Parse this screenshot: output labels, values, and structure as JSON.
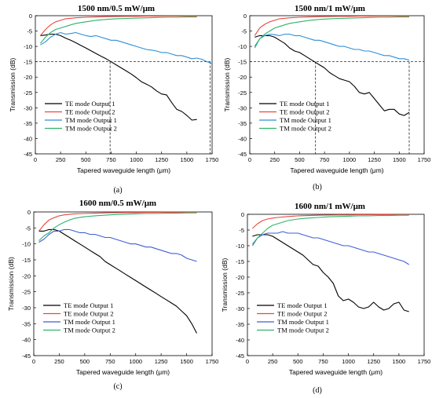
{
  "chart_data": [
    {
      "type": "line",
      "title": "1500 nm/0.5 mW/μm",
      "caption": "(a)",
      "xlabel": "Tapered waveguide length (μm)",
      "ylabel": "Transmission (dB)",
      "xlim": [
        0,
        1750
      ],
      "ylim": [
        -45,
        0
      ],
      "xticks": [
        0,
        250,
        500,
        750,
        1000,
        1250,
        1500,
        1750
      ],
      "yticks": [
        0,
        -5,
        -10,
        -15,
        -20,
        -25,
        -30,
        -35,
        -40,
        -45
      ],
      "legend_position": "lower-left",
      "reference_lines": {
        "horizontal_y": -15,
        "vertical_x": [
          740,
          1730
        ]
      },
      "series": [
        {
          "name": "TE mode Output 1",
          "color": "#000000",
          "x": [
            50,
            100,
            150,
            200,
            250,
            300,
            350,
            400,
            450,
            500,
            550,
            600,
            650,
            700,
            750,
            800,
            850,
            900,
            950,
            1000,
            1050,
            1100,
            1150,
            1200,
            1250,
            1300,
            1350,
            1400,
            1450,
            1500,
            1550,
            1600
          ],
          "y": [
            -6.5,
            -6.3,
            -6.0,
            -6.0,
            -6.5,
            -7.3,
            -8.0,
            -8.8,
            -9.7,
            -10.5,
            -11.4,
            -12.3,
            -13.2,
            -14.0,
            -15.0,
            -16.0,
            -17.0,
            -18.0,
            -19.0,
            -20.2,
            -21.5,
            -22.3,
            -23.2,
            -24.5,
            -25.5,
            -25.8,
            -28.3,
            -30.5,
            -31.2,
            -32.5,
            -34.0,
            -33.8
          ]
        },
        {
          "name": "TE mode Output 2",
          "color": "#e8483f",
          "x": [
            50,
            100,
            150,
            200,
            250,
            300,
            400,
            500,
            600,
            700,
            800,
            900,
            1000,
            1100,
            1200,
            1300,
            1400,
            1500,
            1600
          ],
          "y": [
            -6.5,
            -4.5,
            -3.0,
            -2.0,
            -1.5,
            -1.0,
            -0.7,
            -0.5,
            -0.4,
            -0.3,
            -0.25,
            -0.2,
            -0.2,
            -0.15,
            -0.15,
            -0.1,
            -0.1,
            -0.1,
            -0.1
          ]
        },
        {
          "name": "TM mode Output 1",
          "color": "#2e8fd8",
          "x": [
            50,
            100,
            150,
            200,
            250,
            300,
            350,
            400,
            450,
            500,
            550,
            600,
            650,
            700,
            750,
            800,
            850,
            900,
            950,
            1000,
            1050,
            1100,
            1150,
            1200,
            1250,
            1300,
            1350,
            1400,
            1450,
            1500,
            1550,
            1600,
            1650,
            1700,
            1750
          ],
          "y": [
            -9.5,
            -8.5,
            -7.0,
            -6.0,
            -5.5,
            -6.0,
            -5.8,
            -5.5,
            -6.0,
            -6.5,
            -6.8,
            -6.5,
            -7.0,
            -7.5,
            -8.0,
            -8.0,
            -8.5,
            -9.0,
            -9.5,
            -10.0,
            -10.5,
            -11.0,
            -11.2,
            -11.5,
            -12.0,
            -12.0,
            -12.5,
            -13.0,
            -13.0,
            -13.5,
            -14.0,
            -13.8,
            -14.2,
            -15.0,
            -15.5
          ]
        },
        {
          "name": "TM mode Output 2",
          "color": "#2fb36a",
          "x": [
            50,
            100,
            150,
            200,
            250,
            300,
            350,
            400,
            500,
            600,
            700,
            800,
            900,
            1000,
            1100,
            1200,
            1300,
            1400,
            1500,
            1600
          ],
          "y": [
            -9.0,
            -7.0,
            -5.5,
            -4.5,
            -4.0,
            -3.5,
            -3.0,
            -2.5,
            -2.0,
            -1.5,
            -1.2,
            -1.0,
            -0.9,
            -0.8,
            -0.7,
            -0.6,
            -0.5,
            -0.5,
            -0.4,
            -0.4
          ]
        }
      ]
    },
    {
      "type": "line",
      "title": "1500 nm/1 mW/μm",
      "caption": "(b)",
      "xlabel": "Tapered waveguide length (μm)",
      "ylabel": "Transmission (dB)",
      "xlim": [
        0,
        1750
      ],
      "ylim": [
        -45,
        0
      ],
      "xticks": [
        0,
        250,
        500,
        750,
        1000,
        1250,
        1500,
        1750
      ],
      "yticks": [
        0,
        -5,
        -10,
        -15,
        -20,
        -25,
        -30,
        -35,
        -40,
        -45
      ],
      "legend_position": "lower-left",
      "reference_lines": {
        "horizontal_y": -15,
        "vertical_x": [
          660,
          1600
        ]
      },
      "series": [
        {
          "name": "TE mode Output 1",
          "color": "#000000",
          "x": [
            50,
            100,
            150,
            200,
            250,
            300,
            350,
            400,
            450,
            500,
            550,
            600,
            650,
            700,
            750,
            800,
            850,
            900,
            950,
            1000,
            1050,
            1100,
            1150,
            1200,
            1250,
            1300,
            1350,
            1400,
            1450,
            1500,
            1550,
            1600
          ],
          "y": [
            -7.0,
            -6.5,
            -6.5,
            -6.5,
            -7.0,
            -8.0,
            -9.0,
            -10.5,
            -11.5,
            -12.0,
            -13.0,
            -14.0,
            -15.0,
            -16.0,
            -17.0,
            -18.5,
            -19.5,
            -20.5,
            -21.0,
            -21.5,
            -23.0,
            -25.0,
            -25.5,
            -25.0,
            -27.0,
            -29.0,
            -31.0,
            -30.5,
            -30.5,
            -32.0,
            -32.5,
            -31.5
          ]
        },
        {
          "name": "TE mode Output 2",
          "color": "#e8483f",
          "x": [
            50,
            100,
            150,
            200,
            250,
            300,
            400,
            500,
            600,
            700,
            800,
            900,
            1000,
            1100,
            1200,
            1300,
            1400,
            1500,
            1600
          ],
          "y": [
            -6.5,
            -4.0,
            -2.8,
            -2.0,
            -1.5,
            -1.0,
            -0.7,
            -0.5,
            -0.4,
            -0.3,
            -0.25,
            -0.2,
            -0.2,
            -0.15,
            -0.15,
            -0.1,
            -0.1,
            -0.1,
            -0.1
          ]
        },
        {
          "name": "TM mode Output 1",
          "color": "#2e8fd8",
          "x": [
            50,
            100,
            150,
            200,
            250,
            300,
            350,
            400,
            450,
            500,
            550,
            600,
            650,
            700,
            750,
            800,
            850,
            900,
            950,
            1000,
            1050,
            1100,
            1150,
            1200,
            1250,
            1300,
            1350,
            1400,
            1450,
            1500,
            1550,
            1600
          ],
          "y": [
            -10.0,
            -7.5,
            -6.5,
            -6.0,
            -6.2,
            -6.5,
            -6.0,
            -6.0,
            -6.5,
            -6.5,
            -7.0,
            -7.5,
            -8.0,
            -8.0,
            -8.5,
            -9.0,
            -9.5,
            -10.0,
            -10.0,
            -10.5,
            -11.0,
            -11.0,
            -11.5,
            -11.5,
            -12.0,
            -12.5,
            -13.0,
            -13.0,
            -13.5,
            -14.0,
            -14.0,
            -14.5
          ]
        },
        {
          "name": "TM mode Output 2",
          "color": "#2fb36a",
          "x": [
            50,
            100,
            150,
            200,
            250,
            300,
            350,
            400,
            500,
            600,
            700,
            800,
            900,
            1000,
            1100,
            1200,
            1300,
            1400,
            1500,
            1600
          ],
          "y": [
            -10.5,
            -7.5,
            -6.0,
            -5.0,
            -4.0,
            -3.5,
            -3.0,
            -2.5,
            -2.0,
            -1.5,
            -1.2,
            -1.0,
            -0.9,
            -0.8,
            -0.7,
            -0.6,
            -0.5,
            -0.5,
            -0.4,
            -0.4
          ]
        }
      ]
    },
    {
      "type": "line",
      "title": "1600 nm/0.5 mW/μm",
      "caption": "(c)",
      "xlabel": "Tapered waveguide length (μm)",
      "ylabel": "Transmission (dB)",
      "xlim": [
        0,
        1750
      ],
      "ylim": [
        -45,
        0
      ],
      "xticks": [
        0,
        250,
        500,
        750,
        1000,
        1250,
        1500,
        1750
      ],
      "yticks": [
        0,
        -5,
        -10,
        -15,
        -20,
        -25,
        -30,
        -35,
        -40,
        -45
      ],
      "legend_position": "lower-left",
      "series": [
        {
          "name": "TE mode Output 1",
          "color": "#000000",
          "x": [
            50,
            100,
            150,
            200,
            250,
            300,
            350,
            400,
            450,
            500,
            550,
            600,
            650,
            700,
            750,
            800,
            850,
            900,
            950,
            1000,
            1050,
            1100,
            1150,
            1200,
            1250,
            1300,
            1350,
            1400,
            1450,
            1500,
            1550,
            1600
          ],
          "y": [
            -6.0,
            -6.0,
            -5.5,
            -5.5,
            -6.0,
            -7.0,
            -8.0,
            -9.0,
            -10.0,
            -11.0,
            -12.0,
            -13.0,
            -14.0,
            -15.5,
            -16.5,
            -17.5,
            -18.5,
            -19.5,
            -20.5,
            -21.5,
            -22.5,
            -23.5,
            -24.5,
            -25.5,
            -26.5,
            -27.5,
            -28.5,
            -29.5,
            -31.0,
            -32.5,
            -35.0,
            -38.0
          ]
        },
        {
          "name": "TE mode Output 2",
          "color": "#e8483f",
          "x": [
            50,
            100,
            150,
            200,
            250,
            300,
            400,
            500,
            600,
            700,
            800,
            900,
            1000,
            1100,
            1200,
            1300,
            1400,
            1500,
            1600
          ],
          "y": [
            -6.0,
            -4.0,
            -2.5,
            -1.8,
            -1.2,
            -0.9,
            -0.6,
            -0.5,
            -0.4,
            -0.3,
            -0.25,
            -0.2,
            -0.2,
            -0.15,
            -0.15,
            -0.1,
            -0.1,
            -0.1,
            -0.1
          ]
        },
        {
          "name": "TM mode Output 1",
          "color": "#3f5fd8",
          "x": [
            50,
            100,
            150,
            200,
            250,
            300,
            350,
            400,
            450,
            500,
            550,
            600,
            650,
            700,
            750,
            800,
            850,
            900,
            950,
            1000,
            1050,
            1100,
            1150,
            1200,
            1250,
            1300,
            1350,
            1400,
            1450,
            1500,
            1550,
            1600
          ],
          "y": [
            -9.5,
            -8.5,
            -7.0,
            -6.0,
            -6.0,
            -5.5,
            -5.5,
            -6.0,
            -6.5,
            -6.5,
            -7.0,
            -7.0,
            -7.5,
            -8.0,
            -8.0,
            -8.5,
            -9.0,
            -9.5,
            -10.0,
            -10.0,
            -10.5,
            -11.0,
            -11.0,
            -11.5,
            -12.0,
            -12.5,
            -13.0,
            -13.0,
            -13.5,
            -14.5,
            -15.0,
            -15.5
          ]
        },
        {
          "name": "TM mode Output 2",
          "color": "#2fb36a",
          "x": [
            50,
            100,
            150,
            200,
            250,
            300,
            350,
            400,
            500,
            600,
            700,
            800,
            900,
            1000,
            1100,
            1200,
            1300,
            1400,
            1500,
            1600
          ],
          "y": [
            -9.0,
            -7.5,
            -6.5,
            -5.0,
            -4.0,
            -3.2,
            -2.5,
            -2.0,
            -1.5,
            -1.2,
            -1.0,
            -0.8,
            -0.7,
            -0.6,
            -0.5,
            -0.5,
            -0.4,
            -0.4,
            -0.3,
            -0.3
          ]
        }
      ]
    },
    {
      "type": "line",
      "title": "1600 nm/1 mW/μm",
      "caption": "(d)",
      "xlabel": "Tapered waveguide length (μm)",
      "ylabel": "Transmission (dB)",
      "xlim": [
        0,
        1750
      ],
      "ylim": [
        -45,
        0
      ],
      "xticks": [
        0,
        250,
        500,
        750,
        1000,
        1250,
        1500,
        1750
      ],
      "yticks": [
        0,
        -5,
        -10,
        -15,
        -20,
        -25,
        -30,
        -35,
        -40,
        -45
      ],
      "legend_position": "lower-left",
      "series": [
        {
          "name": "TE mode Output 1",
          "color": "#000000",
          "x": [
            50,
            100,
            150,
            200,
            250,
            300,
            350,
            400,
            450,
            500,
            550,
            600,
            650,
            700,
            750,
            800,
            850,
            900,
            950,
            1000,
            1050,
            1100,
            1150,
            1200,
            1250,
            1300,
            1350,
            1400,
            1450,
            1500,
            1550,
            1600
          ],
          "y": [
            -7.0,
            -6.5,
            -6.5,
            -6.5,
            -7.0,
            -8.0,
            -9.0,
            -10.0,
            -11.0,
            -12.0,
            -13.0,
            -14.5,
            -16.0,
            -16.5,
            -18.5,
            -20.0,
            -22.0,
            -26.0,
            -27.5,
            -27.0,
            -28.0,
            -29.5,
            -30.0,
            -29.5,
            -28.0,
            -29.5,
            -30.5,
            -30.0,
            -28.5,
            -28.0,
            -30.5,
            -31.0
          ]
        },
        {
          "name": "TE mode Output 2",
          "color": "#e8483f",
          "x": [
            50,
            100,
            150,
            200,
            250,
            300,
            400,
            500,
            600,
            700,
            800,
            900,
            1000,
            1100,
            1200,
            1300,
            1400,
            1500,
            1600
          ],
          "y": [
            -4.5,
            -3.0,
            -2.0,
            -1.5,
            -1.2,
            -1.0,
            -0.7,
            -0.5,
            -0.4,
            -0.3,
            -0.25,
            -0.2,
            -0.2,
            -0.15,
            -0.15,
            -0.1,
            -0.1,
            -0.1,
            -0.1
          ]
        },
        {
          "name": "TM mode Output 1",
          "color": "#3f5fd8",
          "x": [
            50,
            100,
            150,
            200,
            250,
            300,
            350,
            400,
            450,
            500,
            550,
            600,
            650,
            700,
            750,
            800,
            850,
            900,
            950,
            1000,
            1050,
            1100,
            1150,
            1200,
            1250,
            1300,
            1350,
            1400,
            1450,
            1500,
            1550,
            1600
          ],
          "y": [
            -10.0,
            -7.5,
            -6.5,
            -6.0,
            -6.0,
            -6.0,
            -5.5,
            -6.0,
            -6.0,
            -6.0,
            -6.5,
            -7.0,
            -7.5,
            -7.5,
            -8.0,
            -8.5,
            -9.0,
            -9.5,
            -10.0,
            -10.0,
            -10.5,
            -11.0,
            -11.5,
            -12.0,
            -12.0,
            -12.5,
            -13.0,
            -13.5,
            -14.0,
            -14.5,
            -15.0,
            -16.0
          ]
        },
        {
          "name": "TM mode Output 2",
          "color": "#2fb36a",
          "x": [
            50,
            100,
            150,
            200,
            250,
            300,
            350,
            400,
            500,
            600,
            700,
            800,
            900,
            1000,
            1100,
            1200,
            1300,
            1400,
            1500,
            1600
          ],
          "y": [
            -9.5,
            -7.5,
            -6.0,
            -4.5,
            -3.5,
            -3.0,
            -2.5,
            -2.0,
            -1.5,
            -1.2,
            -1.0,
            -0.8,
            -0.7,
            -0.6,
            -0.5,
            -0.5,
            -0.4,
            -0.4,
            -0.3,
            -0.3
          ]
        }
      ]
    }
  ]
}
